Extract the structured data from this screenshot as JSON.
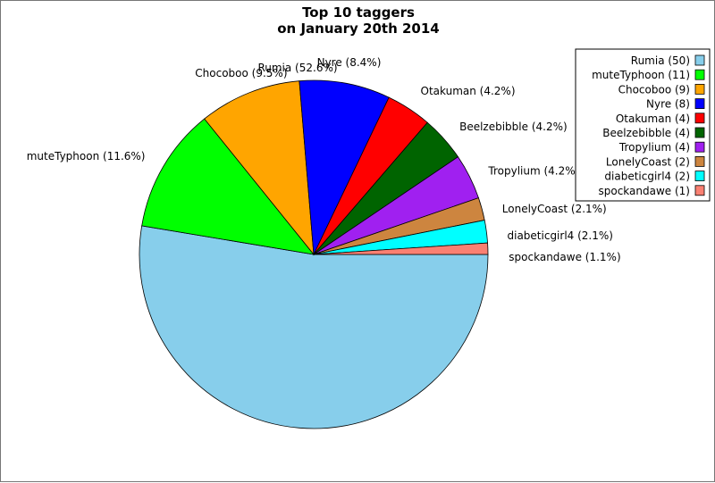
{
  "chart_data": {
    "type": "pie",
    "title_lines": [
      "Top 10 taggers",
      "on January 20th 2014"
    ],
    "slices": [
      {
        "name": "Rumia",
        "value": 50,
        "legend": "Rumia (50)",
        "label": "Rumia (52.6%)",
        "color": "#87ceeb"
      },
      {
        "name": "muteTyphoon",
        "value": 11,
        "legend": "muteTyphoon (11)",
        "label": "muteTyphoon (11.6%)",
        "color": "#00ff00"
      },
      {
        "name": "Chocoboo",
        "value": 9,
        "legend": "Chocoboo (9)",
        "label": "Chocoboo (9.5%)",
        "color": "#ffa500"
      },
      {
        "name": "Nyre",
        "value": 8,
        "legend": "Nyre (8)",
        "label": "Nyre (8.4%)",
        "color": "#0000ff"
      },
      {
        "name": "Otakuman",
        "value": 4,
        "legend": "Otakuman (4)",
        "label": "Otakuman (4.2%)",
        "color": "#ff0000"
      },
      {
        "name": "Beelzebibble",
        "value": 4,
        "legend": "Beelzebibble (4)",
        "label": "Beelzebibble (4.2%)",
        "color": "#006400"
      },
      {
        "name": "Tropylium",
        "value": 4,
        "legend": "Tropylium (4)",
        "label": "Tropylium (4.2%)",
        "color": "#a020f0"
      },
      {
        "name": "LonelyCoast",
        "value": 2,
        "legend": "LonelyCoast (2)",
        "label": "LonelyCoast (2.1%)",
        "color": "#cd853f"
      },
      {
        "name": "diabeticgirl4",
        "value": 2,
        "legend": "diabeticgirl4 (2)",
        "label": "diabeticgirl4 (2.1%)",
        "color": "#00ffff"
      },
      {
        "name": "spockandawe",
        "value": 1,
        "legend": "spockandawe (1)",
        "label": "spockandawe (1.1%)",
        "color": "#fa8072"
      }
    ],
    "start_angle_deg": 0,
    "direction": "clockwise",
    "legend_position": "top-right"
  }
}
